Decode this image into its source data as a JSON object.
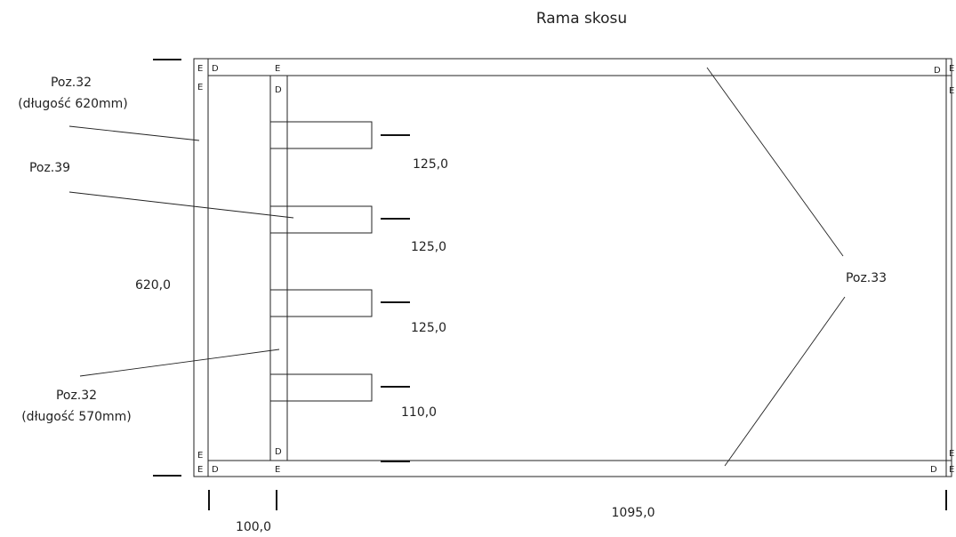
{
  "title": "Rama skosu",
  "labels": {
    "poz32_long": "Poz.32",
    "poz32_long_len": "(długość 620mm)",
    "poz39": "Poz.39",
    "poz32_short": "Poz.32",
    "poz32_short_len": "(długość 570mm)",
    "poz33": "Poz.33"
  },
  "dimensions": {
    "height": "620,0",
    "width": "1095,0",
    "offset": "100,0",
    "spacings": [
      "125,0",
      "125,0",
      "125,0",
      "110,0"
    ]
  },
  "joint_marks": {
    "e": "E",
    "d": "D"
  }
}
